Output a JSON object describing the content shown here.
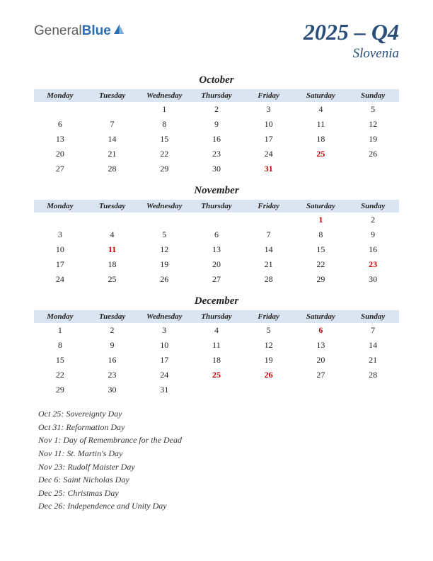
{
  "logo": {
    "part1": "General",
    "part2": "Blue"
  },
  "title": {
    "main": "2025 – Q4",
    "sub": "Slovenia"
  },
  "colors": {
    "header_bg": "#dbe5f1",
    "title_color": "#2a4d7a",
    "holiday_color": "#c00000",
    "text_color": "#222222",
    "logo_gray": "#5a5a5a",
    "logo_blue": "#2a6db0"
  },
  "day_headers": [
    "Monday",
    "Tuesday",
    "Wednesday",
    "Thursday",
    "Friday",
    "Saturday",
    "Sunday"
  ],
  "months": [
    {
      "name": "October",
      "weeks": [
        [
          "",
          "",
          "1",
          "2",
          "3",
          "4",
          "5"
        ],
        [
          "6",
          "7",
          "8",
          "9",
          "10",
          "11",
          "12"
        ],
        [
          "13",
          "14",
          "15",
          "16",
          "17",
          "18",
          "19"
        ],
        [
          "20",
          "21",
          "22",
          "23",
          "24",
          "25",
          "26"
        ],
        [
          "27",
          "28",
          "29",
          "30",
          "31",
          "",
          ""
        ]
      ],
      "holidays_pos": [
        [
          3,
          5
        ],
        [
          4,
          4
        ]
      ]
    },
    {
      "name": "November",
      "weeks": [
        [
          "",
          "",
          "",
          "",
          "",
          "1",
          "2"
        ],
        [
          "3",
          "4",
          "5",
          "6",
          "7",
          "8",
          "9"
        ],
        [
          "10",
          "11",
          "12",
          "13",
          "14",
          "15",
          "16"
        ],
        [
          "17",
          "18",
          "19",
          "20",
          "21",
          "22",
          "23"
        ],
        [
          "24",
          "25",
          "26",
          "27",
          "28",
          "29",
          "30"
        ]
      ],
      "holidays_pos": [
        [
          0,
          5
        ],
        [
          2,
          1
        ],
        [
          3,
          6
        ]
      ]
    },
    {
      "name": "December",
      "weeks": [
        [
          "1",
          "2",
          "3",
          "4",
          "5",
          "6",
          "7"
        ],
        [
          "8",
          "9",
          "10",
          "11",
          "12",
          "13",
          "14"
        ],
        [
          "15",
          "16",
          "17",
          "18",
          "19",
          "20",
          "21"
        ],
        [
          "22",
          "23",
          "24",
          "25",
          "26",
          "27",
          "28"
        ],
        [
          "29",
          "30",
          "31",
          "",
          "",
          "",
          ""
        ]
      ],
      "holidays_pos": [
        [
          0,
          5
        ],
        [
          3,
          3
        ],
        [
          3,
          4
        ]
      ]
    }
  ],
  "holiday_list": [
    "Oct 25: Sovereignty Day",
    "Oct 31: Reformation Day",
    "Nov 1: Day of Remembrance for the Dead",
    "Nov 11: St. Martin's Day",
    "Nov 23: Rudolf Maister Day",
    "Dec 6: Saint Nicholas Day",
    "Dec 25: Christmas Day",
    "Dec 26: Independence and Unity Day"
  ]
}
